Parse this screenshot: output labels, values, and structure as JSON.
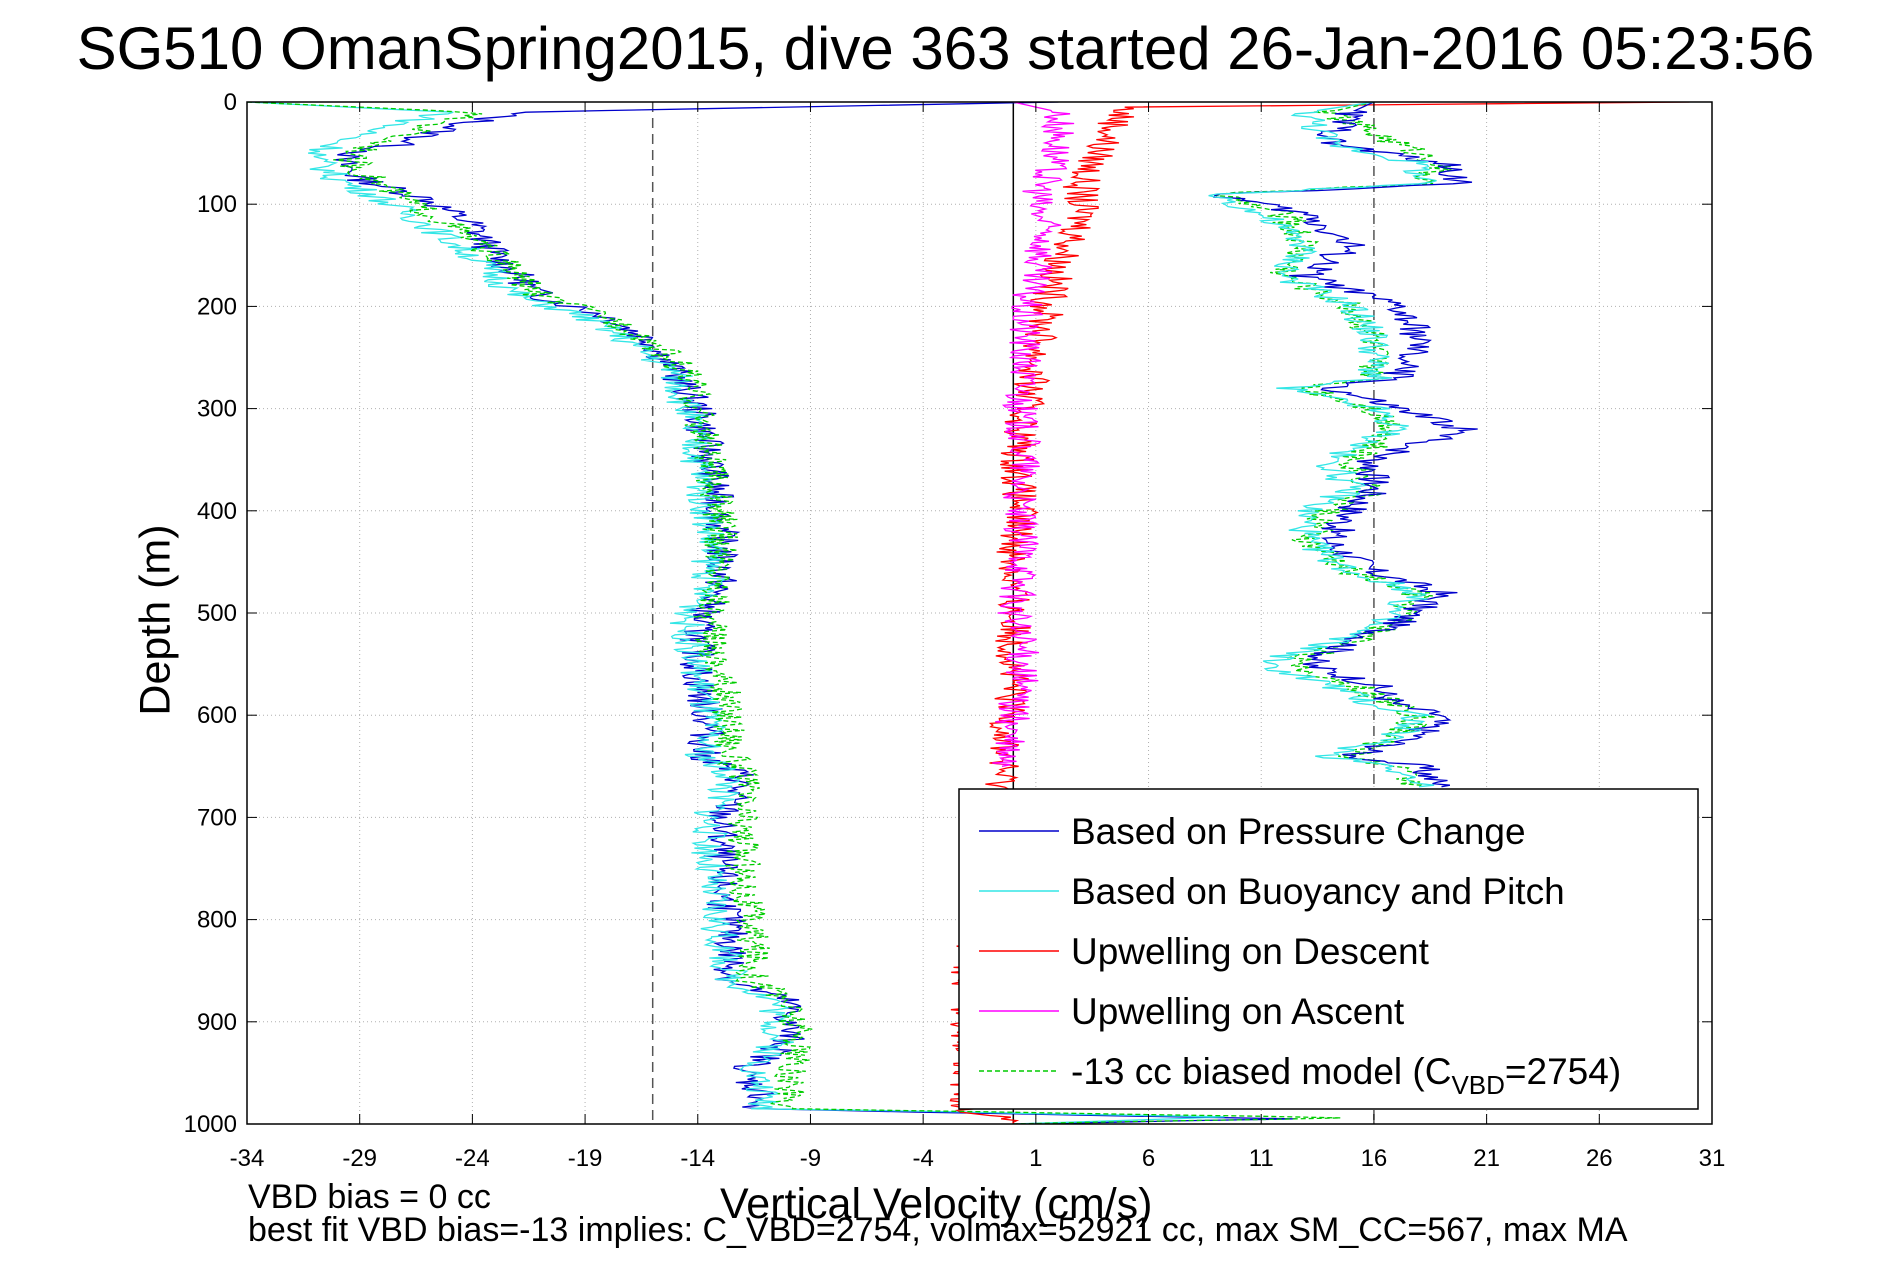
{
  "chart_data": {
    "type": "line",
    "title": "SG510 OmanSpring2015, dive 363 started 26-Jan-2016 05:23:56",
    "xlabel": "Vertical Velocity (cm/s)",
    "ylabel": "Depth (m)",
    "xlim": [
      -34,
      31
    ],
    "ylim": [
      1000,
      0
    ],
    "x_ticks": [
      "-34",
      "-29",
      "-24",
      "-19",
      "-14",
      "-9",
      "-4",
      "1",
      "6",
      "11",
      "16",
      "21",
      "26",
      "31"
    ],
    "y_ticks": [
      "0",
      "100",
      "200",
      "300",
      "400",
      "500",
      "600",
      "700",
      "800",
      "900",
      "1000"
    ],
    "grid": true,
    "legend_position": "bottom-right",
    "reference_lines": [
      {
        "x": 0,
        "style": "solid"
      },
      {
        "x": -16,
        "style": "dashed"
      },
      {
        "x": 16,
        "style": "dashed"
      }
    ],
    "series": [
      {
        "name": "Based on Pressure Change",
        "color": "#0000cc",
        "style": "solid",
        "points": [
          [
            2,
            0
          ],
          [
            -22,
            10
          ],
          [
            -25,
            25
          ],
          [
            -27,
            40
          ],
          [
            -30,
            55
          ],
          [
            -29,
            75
          ],
          [
            -26,
            95
          ],
          [
            -24,
            120
          ],
          [
            -23,
            150
          ],
          [
            -21,
            190
          ],
          [
            -18,
            210
          ],
          [
            -16,
            235
          ],
          [
            -15,
            265
          ],
          [
            -14,
            300
          ],
          [
            -13.5,
            350
          ],
          [
            -13,
            410
          ],
          [
            -13,
            470
          ],
          [
            -14,
            510
          ],
          [
            -14,
            560
          ],
          [
            -13.5,
            610
          ],
          [
            -13.8,
            640
          ],
          [
            -12,
            660
          ],
          [
            -13,
            700
          ],
          [
            -13,
            760
          ],
          [
            -12.5,
            820
          ],
          [
            -12.5,
            860
          ],
          [
            -10,
            880
          ],
          [
            -10,
            920
          ],
          [
            -12,
            950
          ],
          [
            -11,
            975
          ],
          [
            -12,
            985
          ],
          [
            12,
            995
          ],
          [
            0,
            1000
          ]
        ]
      },
      {
        "name": "Based on Buoyancy and Pitch",
        "color": "#33e6e6",
        "style": "solid",
        "points": [
          [
            -34,
            0
          ],
          [
            -25,
            10
          ],
          [
            -28,
            25
          ],
          [
            -30,
            40
          ],
          [
            -31,
            55
          ],
          [
            -30,
            75
          ],
          [
            -28,
            95
          ],
          [
            -26,
            120
          ],
          [
            -24,
            150
          ],
          [
            -22,
            190
          ],
          [
            -19,
            210
          ],
          [
            -17,
            235
          ],
          [
            -15,
            265
          ],
          [
            -14.5,
            300
          ],
          [
            -14,
            350
          ],
          [
            -13.5,
            410
          ],
          [
            -13.5,
            470
          ],
          [
            -14.5,
            510
          ],
          [
            -14,
            560
          ],
          [
            -13.5,
            610
          ],
          [
            -13.8,
            640
          ],
          [
            -12.5,
            660
          ],
          [
            -13.5,
            700
          ],
          [
            -13.5,
            760
          ],
          [
            -13,
            820
          ],
          [
            -12.5,
            860
          ],
          [
            -10.5,
            880
          ],
          [
            -10.5,
            920
          ],
          [
            -11.5,
            950
          ],
          [
            -11,
            975
          ],
          [
            -11,
            985
          ],
          [
            10,
            993
          ],
          [
            0,
            1000
          ]
        ]
      },
      {
        "name": "Upwelling on Descent",
        "color": "#ff0000",
        "style": "solid",
        "points": [
          [
            30,
            0
          ],
          [
            5,
            5
          ],
          [
            4,
            40
          ],
          [
            3,
            80
          ],
          [
            3,
            120
          ],
          [
            2,
            160
          ],
          [
            1.5,
            200
          ],
          [
            1,
            250
          ],
          [
            0.5,
            300
          ],
          [
            0.2,
            350
          ],
          [
            0.3,
            400
          ],
          [
            0,
            450
          ],
          [
            0,
            500
          ],
          [
            0,
            550
          ],
          [
            -0.2,
            600
          ],
          [
            -0.5,
            650
          ],
          [
            -0.5,
            680
          ],
          [
            -2,
            850
          ],
          [
            -2,
            920
          ],
          [
            -2,
            960
          ],
          [
            -2,
            985
          ],
          [
            0,
            1000
          ]
        ]
      },
      {
        "name": "Upwelling on Ascent",
        "color": "#ff00ff",
        "style": "solid",
        "points": [
          [
            0,
            0
          ],
          [
            2,
            10
          ],
          [
            2,
            40
          ],
          [
            1.5,
            70
          ],
          [
            1,
            100
          ],
          [
            1.5,
            130
          ],
          [
            1,
            160
          ],
          [
            0.5,
            200
          ],
          [
            0.5,
            250
          ],
          [
            0.3,
            300
          ],
          [
            0.5,
            350
          ],
          [
            0.2,
            400
          ],
          [
            0.5,
            450
          ],
          [
            0,
            500
          ],
          [
            0.5,
            550
          ],
          [
            0,
            600
          ],
          [
            -0.5,
            650
          ]
        ]
      },
      {
        "name": "-13 cc biased model (C_VBD=2754)",
        "color": "#00cc00",
        "style": "dashed",
        "points": [
          [
            -34,
            0
          ],
          [
            -24,
            10
          ],
          [
            -26,
            25
          ],
          [
            -28,
            40
          ],
          [
            -29.5,
            55
          ],
          [
            -28.5,
            75
          ],
          [
            -27,
            95
          ],
          [
            -25,
            120
          ],
          [
            -23,
            150
          ],
          [
            -21,
            190
          ],
          [
            -18,
            210
          ],
          [
            -16,
            235
          ],
          [
            -14.5,
            265
          ],
          [
            -14,
            300
          ],
          [
            -13.5,
            350
          ],
          [
            -13,
            410
          ],
          [
            -13,
            470
          ],
          [
            -13.5,
            510
          ],
          [
            -13,
            560
          ],
          [
            -12.5,
            610
          ],
          [
            -12.5,
            640
          ],
          [
            -12,
            660
          ],
          [
            -12,
            700
          ],
          [
            -12,
            760
          ],
          [
            -11.5,
            820
          ],
          [
            -11.5,
            860
          ],
          [
            -10,
            880
          ],
          [
            -9.5,
            920
          ],
          [
            -10,
            950
          ],
          [
            -10,
            975
          ],
          [
            -10,
            985
          ],
          [
            15,
            994
          ],
          [
            0,
            1000
          ]
        ]
      },
      {
        "name": "",
        "color": "#00cc00",
        "style": "dashed",
        "points": [
          [
            16,
            0
          ],
          [
            14,
            10
          ],
          [
            17,
            40
          ],
          [
            19,
            60
          ],
          [
            18,
            80
          ],
          [
            9,
            90
          ],
          [
            12,
            110
          ],
          [
            13,
            140
          ],
          [
            12,
            170
          ],
          [
            15,
            200
          ],
          [
            16,
            230
          ],
          [
            16,
            270
          ],
          [
            13,
            280
          ],
          [
            16,
            300
          ],
          [
            17,
            320
          ],
          [
            15,
            350
          ],
          [
            16,
            380
          ],
          [
            14,
            400
          ],
          [
            13,
            430
          ],
          [
            15,
            460
          ],
          [
            18,
            480
          ],
          [
            17,
            510
          ],
          [
            15,
            530
          ],
          [
            12,
            550
          ],
          [
            15,
            570
          ],
          [
            17,
            590
          ],
          [
            18,
            600
          ],
          [
            17,
            620
          ],
          [
            15,
            640
          ],
          [
            17,
            650
          ],
          [
            18,
            670
          ]
        ]
      },
      {
        "name": "",
        "color": "#0000cc",
        "style": "solid",
        "points": [
          [
            16,
            0
          ],
          [
            15,
            10
          ],
          [
            14,
            40
          ],
          [
            19,
            60
          ],
          [
            20,
            80
          ],
          [
            9,
            90
          ],
          [
            13,
            110
          ],
          [
            15,
            140
          ],
          [
            13,
            170
          ],
          [
            17,
            200
          ],
          [
            18,
            230
          ],
          [
            17,
            270
          ],
          [
            14,
            280
          ],
          [
            17,
            300
          ],
          [
            20,
            320
          ],
          [
            16,
            350
          ],
          [
            16,
            380
          ],
          [
            15,
            400
          ],
          [
            14,
            430
          ],
          [
            16,
            460
          ],
          [
            19,
            480
          ],
          [
            17,
            510
          ],
          [
            15,
            530
          ],
          [
            13,
            550
          ],
          [
            16,
            570
          ],
          [
            17,
            590
          ],
          [
            19,
            600
          ],
          [
            18,
            620
          ],
          [
            15,
            640
          ],
          [
            18,
            650
          ],
          [
            19,
            670
          ]
        ]
      },
      {
        "name": "",
        "color": "#33e6e6",
        "style": "solid",
        "points": [
          [
            16,
            0
          ],
          [
            13,
            10
          ],
          [
            14,
            40
          ],
          [
            18,
            60
          ],
          [
            18,
            80
          ],
          [
            9,
            90
          ],
          [
            11,
            110
          ],
          [
            13,
            140
          ],
          [
            12,
            170
          ],
          [
            15,
            200
          ],
          [
            16,
            230
          ],
          [
            16,
            270
          ],
          [
            12,
            280
          ],
          [
            16,
            300
          ],
          [
            17,
            320
          ],
          [
            14,
            350
          ],
          [
            15,
            380
          ],
          [
            13,
            400
          ],
          [
            13,
            430
          ],
          [
            15,
            460
          ],
          [
            18,
            480
          ],
          [
            16,
            510
          ],
          [
            14,
            530
          ],
          [
            11,
            550
          ],
          [
            14,
            570
          ],
          [
            16,
            590
          ],
          [
            18,
            600
          ],
          [
            17,
            620
          ],
          [
            14,
            640
          ],
          [
            17,
            650
          ],
          [
            18,
            670
          ]
        ]
      }
    ],
    "legend": [
      {
        "label": "Based on Pressure Change",
        "color": "#0000cc",
        "style": "solid"
      },
      {
        "label": "Based on Buoyancy and Pitch",
        "color": "#33e6e6",
        "style": "solid"
      },
      {
        "label": "Upwelling on Descent",
        "color": "#ff0000",
        "style": "solid"
      },
      {
        "label": "Upwelling on Ascent",
        "color": "#ff00ff",
        "style": "solid"
      },
      {
        "label": "-13 cc biased model (C",
        "sub": "VBD",
        "suffix": "=2754)",
        "color": "#00cc00",
        "style": "dashed"
      }
    ]
  },
  "notes": {
    "line1": "VBD bias = 0 cc",
    "line2": "best fit VBD bias=-13 implies: C_VBD=2754, volmax=52921 cc, max SM_CC=567, max MA"
  }
}
